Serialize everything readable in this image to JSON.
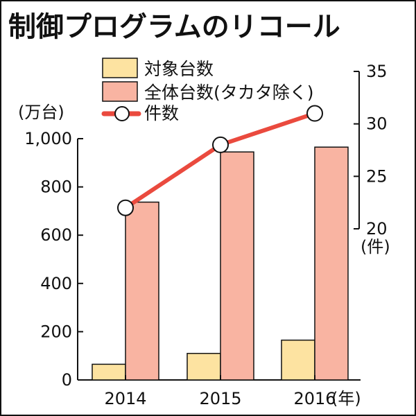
{
  "chart_data": {
    "type": "bar",
    "title": "制御プログラムのリコール",
    "categories": [
      "2014",
      "2015",
      "2016"
    ],
    "x_unit": "(年)",
    "y_left": {
      "unit": "(万台)",
      "range": [
        0,
        1000
      ],
      "ticks": [
        "0",
        "200",
        "400",
        "600",
        "800",
        "1,000"
      ],
      "tick_values": [
        0,
        200,
        400,
        600,
        800,
        1000
      ]
    },
    "y_right": {
      "unit": "(件)",
      "range": [
        0,
        35
      ],
      "ticks": [
        "20",
        "25",
        "30",
        "35"
      ],
      "tick_values": [
        20,
        25,
        30,
        35
      ]
    },
    "series": [
      {
        "name": "対象台数",
        "type": "bar",
        "axis": "left",
        "color": "#fde3a1",
        "values": [
          65,
          110,
          165
        ]
      },
      {
        "name": "全体台数(タカタ除く)",
        "type": "bar",
        "axis": "left",
        "color": "#f9b4a2",
        "values": [
          737,
          945,
          965
        ]
      },
      {
        "name": "件数",
        "type": "line",
        "axis": "right",
        "color": "#ea4a3e",
        "values": [
          22,
          28,
          31
        ]
      }
    ],
    "legend_position": "top",
    "grid": false
  }
}
